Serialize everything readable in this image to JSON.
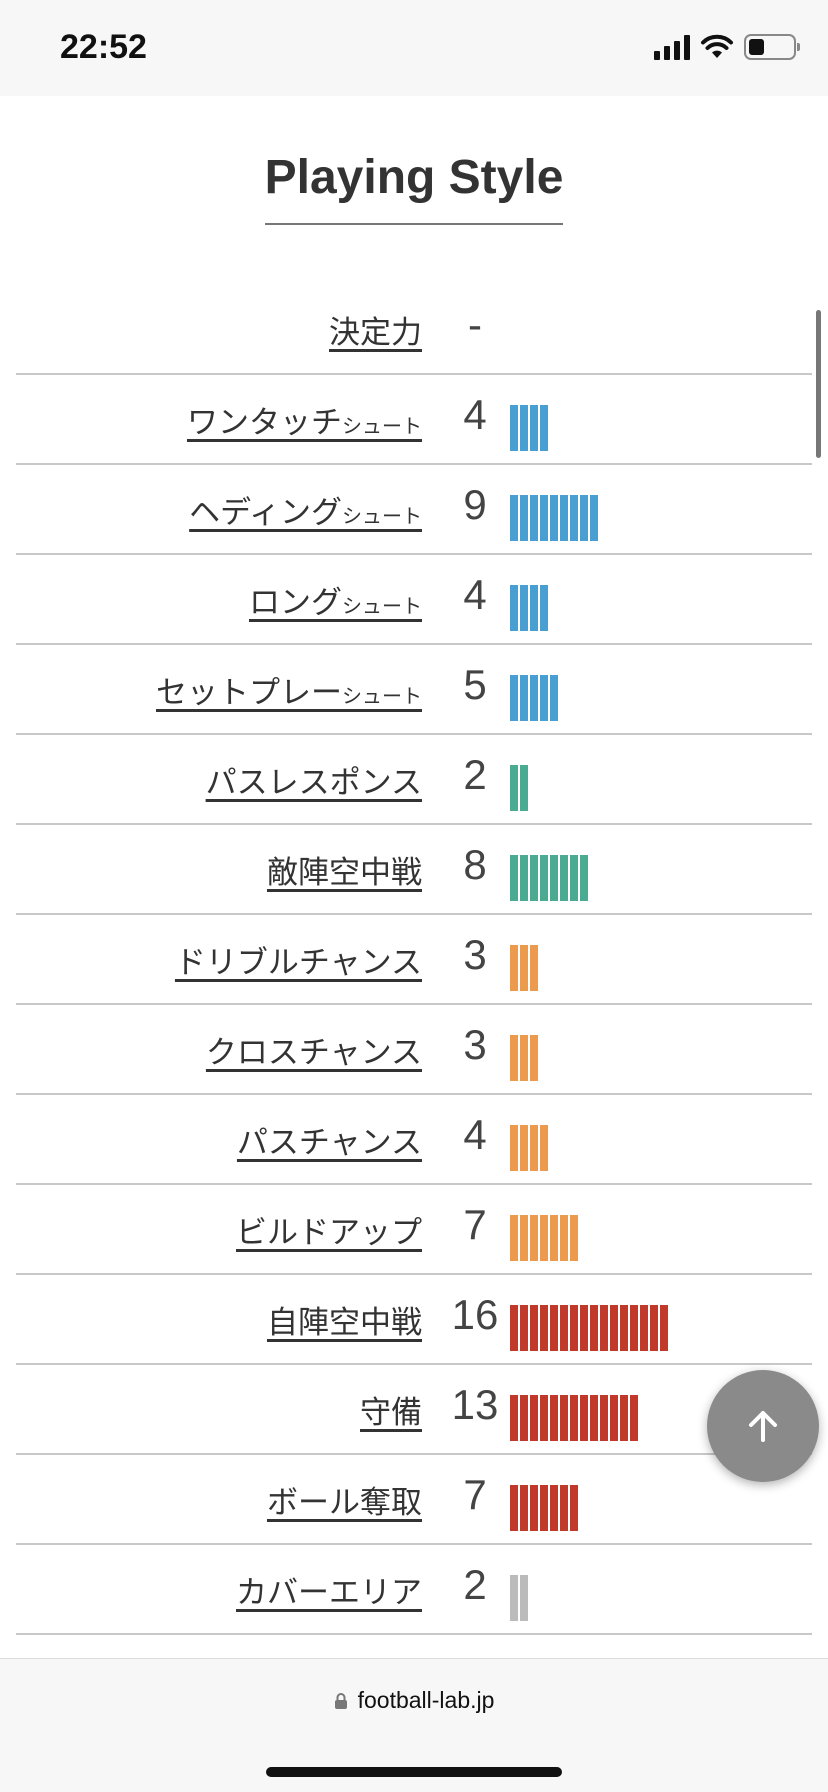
{
  "status_bar": {
    "time": "22:52",
    "battery_level": 0.35
  },
  "page": {
    "title": "Playing Style"
  },
  "colors": {
    "shoot": "#4a9fd2",
    "pass": "#4bab92",
    "chance": "#ec9a4d",
    "defense": "#c0392b",
    "cover": "#bbbbbb"
  },
  "stats": [
    {
      "label": "決定力",
      "suffix": "",
      "value": "-",
      "bar": 0,
      "color": "shoot"
    },
    {
      "label": "ワンタッチ",
      "suffix": "シュート",
      "value": "4",
      "bar": 4,
      "color": "shoot"
    },
    {
      "label": "ヘディング",
      "suffix": "シュート",
      "value": "9",
      "bar": 9,
      "color": "shoot"
    },
    {
      "label": "ロング",
      "suffix": "シュート",
      "value": "4",
      "bar": 4,
      "color": "shoot"
    },
    {
      "label": "セットプレー",
      "suffix": "シュート",
      "value": "5",
      "bar": 5,
      "color": "shoot"
    },
    {
      "label": "パスレスポンス",
      "suffix": "",
      "value": "2",
      "bar": 2,
      "color": "pass"
    },
    {
      "label": "敵陣空中戦",
      "suffix": "",
      "value": "8",
      "bar": 8,
      "color": "pass"
    },
    {
      "label": "ドリブルチャンス",
      "suffix": "",
      "value": "3",
      "bar": 3,
      "color": "chance"
    },
    {
      "label": "クロスチャンス",
      "suffix": "",
      "value": "3",
      "bar": 3,
      "color": "chance"
    },
    {
      "label": "パスチャンス",
      "suffix": "",
      "value": "4",
      "bar": 4,
      "color": "chance"
    },
    {
      "label": "ビルドアップ",
      "suffix": "",
      "value": "7",
      "bar": 7,
      "color": "chance"
    },
    {
      "label": "自陣空中戦",
      "suffix": "",
      "value": "16",
      "bar": 16,
      "color": "defense"
    },
    {
      "label": "守備",
      "suffix": "",
      "value": "13",
      "bar": 13,
      "color": "defense"
    },
    {
      "label": "ボール奪取",
      "suffix": "",
      "value": "7",
      "bar": 7,
      "color": "defense"
    },
    {
      "label": "カバーエリア",
      "suffix": "",
      "value": "2",
      "bar": 2,
      "color": "cover"
    }
  ],
  "browser": {
    "url": "football-lab.jp"
  }
}
